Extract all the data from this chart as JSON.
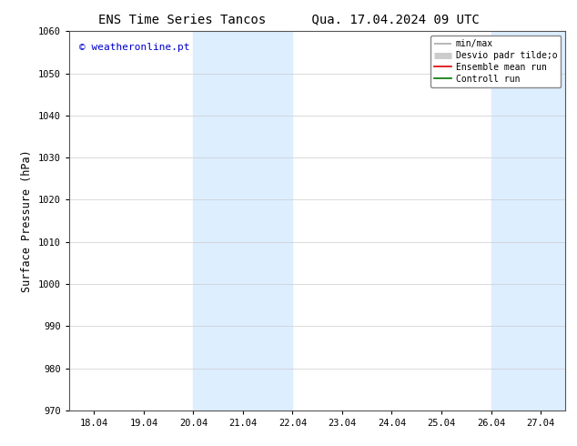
{
  "title_left": "ENS Time Series Tancos",
  "title_right": "Qua. 17.04.2024 09 UTC",
  "ylabel": "Surface Pressure (hPa)",
  "ylim": [
    970,
    1060
  ],
  "yticks": [
    970,
    980,
    990,
    1000,
    1010,
    1020,
    1030,
    1040,
    1050,
    1060
  ],
  "xtick_labels": [
    "18.04",
    "19.04",
    "20.04",
    "21.04",
    "22.04",
    "23.04",
    "24.04",
    "25.04",
    "26.04",
    "27.04"
  ],
  "shaded_bands": [
    {
      "xmin": 2.0,
      "xmax": 4.0
    },
    {
      "xmin": 8.0,
      "xmax": 9.5
    }
  ],
  "shade_color": "#ddeeff",
  "watermark": "© weatheronline.pt",
  "watermark_color": "#0000cc",
  "legend_items": [
    {
      "label": "min/max",
      "color": "#aaaaaa",
      "lw": 1.2
    },
    {
      "label": "Desvio padr tilde;o",
      "color": "#cccccc",
      "lw": 5
    },
    {
      "label": "Ensemble mean run",
      "color": "#dd0000",
      "lw": 1.2
    },
    {
      "label": "Controll run",
      "color": "#007700",
      "lw": 1.2
    }
  ],
  "bg_color": "#ffffff",
  "grid_color": "#cccccc",
  "title_fontsize": 10,
  "tick_fontsize": 7.5,
  "ylabel_fontsize": 8.5,
  "watermark_fontsize": 8
}
